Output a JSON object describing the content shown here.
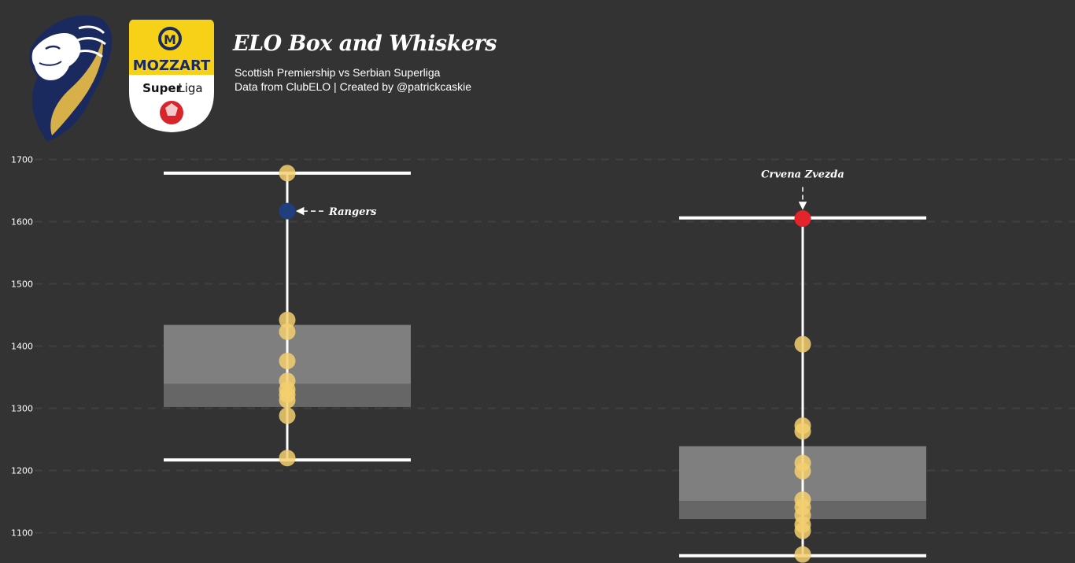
{
  "header": {
    "title": "ELO Box and Whiskers",
    "subtitle_line1": "Scottish Premiership vs Serbian Superliga",
    "subtitle_line2": "Data from ClubELO | Created by @patrickcaskie"
  },
  "logos": {
    "mozzart_brand": "MOZZART",
    "mozzart_league_a": "Super",
    "mozzart_league_b": "Liga",
    "mozzart_mark": "M"
  },
  "colors": {
    "background": "#333333",
    "point": "#F3CF6E",
    "box": "#7f7f7f",
    "box_lower": "#666666",
    "whisker": "#ffffff",
    "highlight_scotland": "#1F3F7F",
    "highlight_serbia": "#E3242B"
  },
  "chart_data": {
    "type": "box",
    "ylim": [
      1045,
      1700
    ],
    "yticks": [
      1100,
      1200,
      1300,
      1400,
      1500,
      1600,
      1700
    ],
    "grid": true,
    "leagues": [
      {
        "whisker_low": 1217,
        "whisker_high": 1678,
        "q1": 1302,
        "median": 1339,
        "q3": 1434,
        "points": [
          1678,
          1442,
          1423,
          1376,
          1344,
          1330,
          1322,
          1313,
          1288,
          1220
        ],
        "highlight": {
          "label": "Rangers",
          "value": 1617
        }
      },
      {
        "whisker_low": 1063,
        "whisker_high": 1606,
        "q1": 1122,
        "median": 1151,
        "q3": 1239,
        "points": [
          1403,
          1272,
          1263,
          1212,
          1199,
          1153,
          1141,
          1128,
          1113,
          1103,
          1065
        ],
        "highlight": {
          "label": "Crvena Zvezda",
          "value": 1605
        }
      }
    ]
  }
}
